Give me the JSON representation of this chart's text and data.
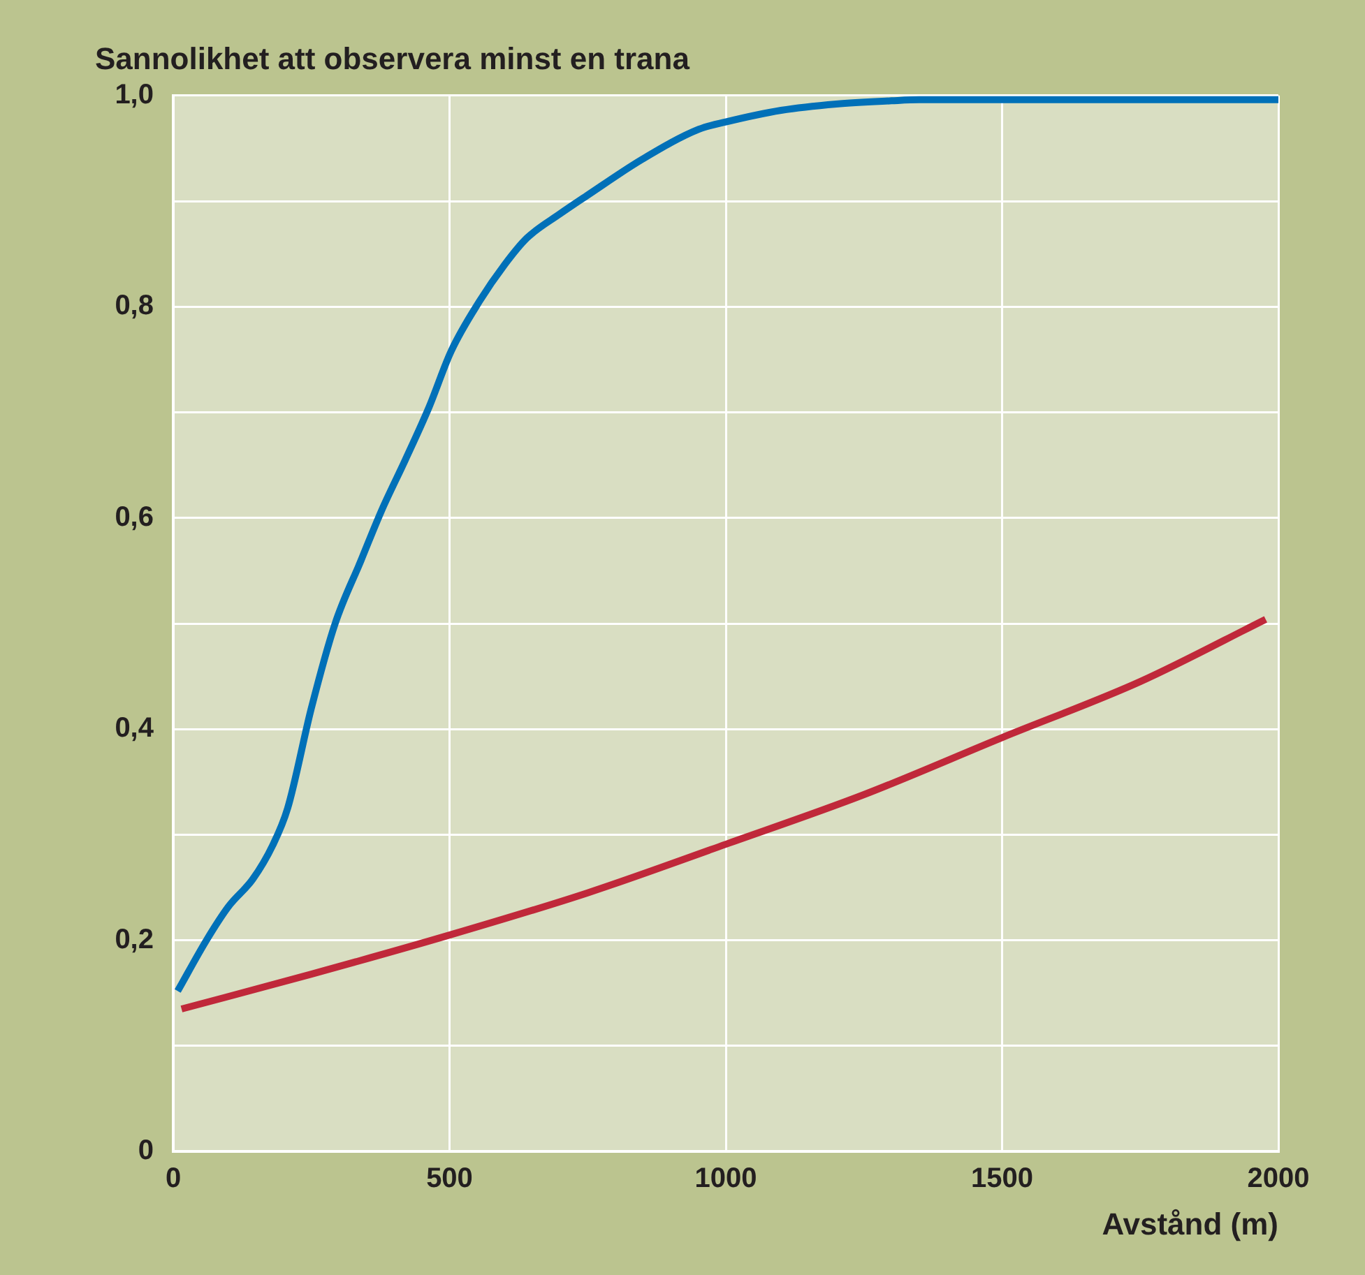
{
  "chart_data": {
    "type": "line",
    "title": "Sannolikhet att observera minst en trana",
    "xlabel": "Avstånd (m)",
    "xlim": [
      0,
      2000
    ],
    "xticks": [
      0,
      500,
      1000,
      1500,
      2000
    ],
    "ylim": [
      0,
      1
    ],
    "yticks": [
      0,
      {
        "value": 0.1,
        "label": null
      },
      {
        "value": 0.2,
        "label": "0,2"
      },
      {
        "value": 0.3,
        "label": null
      },
      {
        "value": 0.4,
        "label": "0,4"
      },
      {
        "value": 0.5,
        "label": null
      },
      {
        "value": 0.6,
        "label": "0,6"
      },
      {
        "value": 0.7,
        "label": null
      },
      {
        "value": 0.8,
        "label": "0,8"
      },
      {
        "value": 0.9,
        "label": null
      },
      {
        "value": 1.0,
        "label": "1,0"
      }
    ],
    "grid": true,
    "legend": false,
    "marker": "none",
    "line_style": "solid",
    "series": [
      {
        "color": "#0070b8",
        "x": [
          8,
          60,
          100,
          144,
          180,
          207,
          250,
          293,
          340,
          377,
          420,
          463,
          503,
          554,
          600,
          640,
          700,
          748,
          850,
          951,
          1000,
          1100,
          1200,
          1300,
          1350,
          1500,
          1750,
          2000
        ],
        "values": [
          0.152,
          0.2,
          0.232,
          0.258,
          0.29,
          0.325,
          0.42,
          0.5,
          0.56,
          0.607,
          0.655,
          0.705,
          0.758,
          0.805,
          0.84,
          0.865,
          0.888,
          0.905,
          0.94,
          0.968,
          0.975,
          0.986,
          0.992,
          0.995,
          0.996,
          0.996,
          0.996,
          0.996
        ]
      },
      {
        "color": "#c0283a",
        "x": [
          15,
          250,
          500,
          750,
          1000,
          1250,
          1500,
          1750,
          1977
        ],
        "values": [
          0.135,
          0.168,
          0.205,
          0.245,
          0.291,
          0.338,
          0.392,
          0.445,
          0.504
        ]
      }
    ]
  }
}
